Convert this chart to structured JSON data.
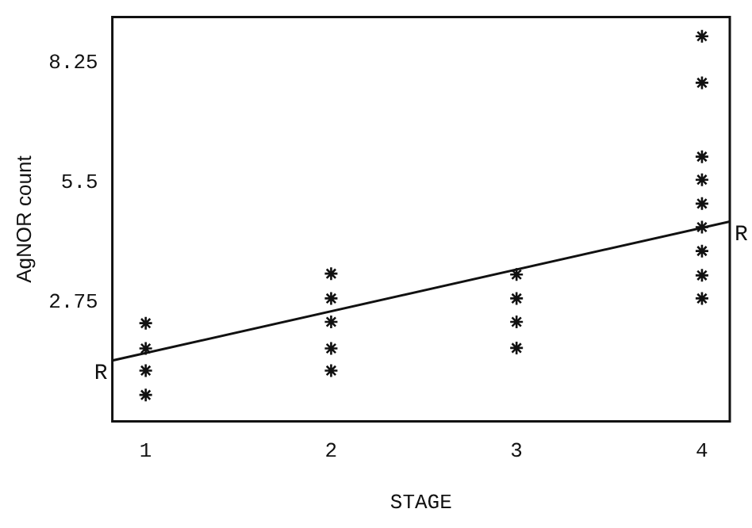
{
  "chart_data": {
    "type": "scatter",
    "xlabel": "STAGE",
    "ylabel": "AgNOR count",
    "xlim": [
      0.82,
      4.15
    ],
    "xticks": [
      1,
      2,
      3,
      4
    ],
    "ylim": [
      0,
      9.3
    ],
    "yticks": [
      2.75,
      5.5,
      8.25
    ],
    "grid": false,
    "legend": false,
    "marker": "cross",
    "series": [
      {
        "color": "#111111",
        "x": [
          1,
          1,
          1,
          1,
          2,
          2,
          2,
          2,
          2,
          3,
          3,
          3,
          3,
          4,
          4,
          4,
          4,
          4,
          4,
          4,
          4,
          4
        ],
        "values": [
          2.26,
          1.68,
          1.17,
          0.61,
          3.4,
          2.83,
          2.29,
          1.68,
          1.17,
          3.38,
          2.83,
          2.29,
          1.69,
          8.86,
          7.79,
          6.09,
          5.56,
          5.01,
          4.47,
          3.92,
          3.36,
          2.83
        ]
      },
      {
        "type": "line",
        "color": "#111111",
        "marker": "none",
        "x": [
          0.82,
          4.15
        ],
        "values": [
          1.4,
          4.6
        ]
      }
    ],
    "annotations": [
      {
        "text": "R",
        "x": 0.82,
        "y": 1.4
      },
      {
        "text": "R",
        "x": 4.15,
        "y": 4.6
      }
    ]
  }
}
